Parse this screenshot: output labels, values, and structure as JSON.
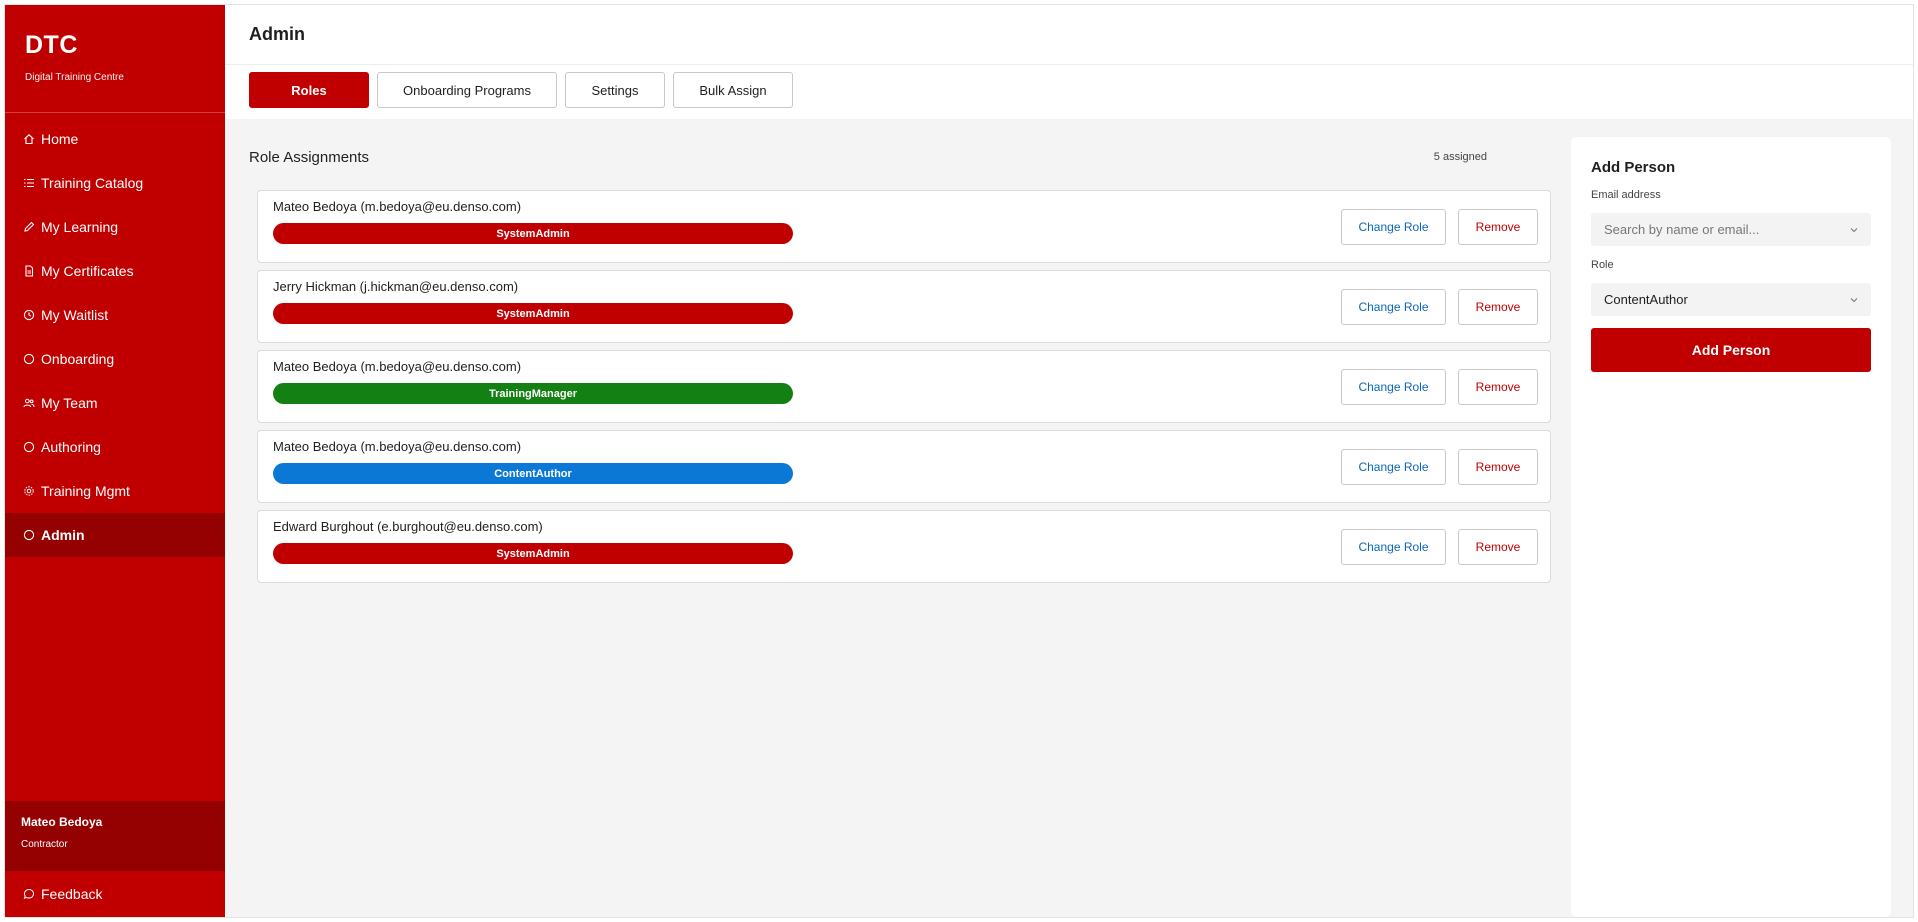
{
  "brand": {
    "title": "DTC",
    "subtitle": "Digital Training Centre"
  },
  "nav": [
    {
      "label": "Home",
      "icon": "home-icon"
    },
    {
      "label": "Training Catalog",
      "icon": "list-icon"
    },
    {
      "label": "My Learning",
      "icon": "pencil-icon"
    },
    {
      "label": "My Certificates",
      "icon": "document-icon"
    },
    {
      "label": "My Waitlist",
      "icon": "clock-icon"
    },
    {
      "label": "Onboarding",
      "icon": "circle-icon"
    },
    {
      "label": "My Team",
      "icon": "team-icon"
    },
    {
      "label": "Authoring",
      "icon": "circle-icon"
    },
    {
      "label": "Training Mgmt",
      "icon": "gear-icon"
    },
    {
      "label": "Admin",
      "icon": "circle-icon",
      "active": true
    }
  ],
  "user": {
    "name": "Mateo Bedoya",
    "role": "Contractor"
  },
  "feedback": {
    "label": "Feedback",
    "icon": "chat-icon"
  },
  "header": {
    "title": "Admin"
  },
  "tabs": [
    {
      "label": "Roles",
      "active": true
    },
    {
      "label": "Onboarding Programs"
    },
    {
      "label": "Settings"
    },
    {
      "label": "Bulk Assign"
    }
  ],
  "assignments": {
    "title": "Role Assignments",
    "count": "5 assigned",
    "change_label": "Change Role",
    "remove_label": "Remove",
    "rows": [
      {
        "name": "Mateo Bedoya (m.bedoya@eu.denso.com)",
        "role": "SystemAdmin",
        "color": "#c00000"
      },
      {
        "name": "Jerry Hickman (j.hickman@eu.denso.com)",
        "role": "SystemAdmin",
        "color": "#c00000"
      },
      {
        "name": "Mateo Bedoya (m.bedoya@eu.denso.com)",
        "role": "TrainingManager",
        "color": "#138013"
      },
      {
        "name": "Mateo Bedoya (m.bedoya@eu.denso.com)",
        "role": "ContentAuthor",
        "color": "#0b78d6"
      },
      {
        "name": "Edward Burghout (e.burghout@eu.denso.com)",
        "role": "SystemAdmin",
        "color": "#c00000"
      }
    ]
  },
  "add_person": {
    "title": "Add Person",
    "email_label": "Email address",
    "email_placeholder": "Search by name or email...",
    "role_label": "Role",
    "role_value": "ContentAuthor",
    "button_label": "Add Person"
  },
  "colors": {
    "brand": "#c00000",
    "brand_dark": "#950000",
    "link": "#0b67c2"
  }
}
